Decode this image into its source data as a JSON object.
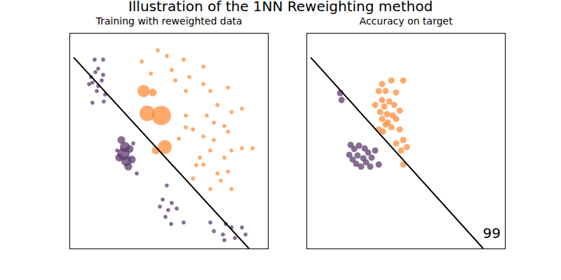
{
  "title": "Illustration of the 1NN Reweighting method",
  "chart_data": [
    {
      "type": "scatter",
      "title": "Training with reweighted data",
      "xlim": [
        0,
        10
      ],
      "ylim": [
        0,
        10
      ],
      "tick_labels": false,
      "series": [
        {
          "color": "#5e3c6e",
          "x": [
            1.24,
            1.67,
            1.42,
            1.28,
            1.67,
            0.96,
            1.13,
            1.42,
            1.35,
            1.77,
            1.7,
            1.13,
            1.06,
            1.6,
            2.59,
            2.77,
            2.7,
            3.01,
            2.48,
            2.84,
            3.12,
            2.94,
            3.37,
            2.38,
            3.19,
            4.89,
            4.68,
            5.14,
            4.54,
            4.96,
            5.39,
            5.74,
            5.11,
            4.82,
            7.09,
            7.87,
            8.16,
            8.69,
            7.73,
            8.33,
            7.27,
            8.87,
            7.8
          ],
          "y": [
            8.79,
            8.79,
            8.37,
            8.21,
            8.08,
            7.65,
            7.72,
            7.56,
            7.33,
            7.17,
            6.84,
            6.78,
            7.98,
            7.82,
            5.05,
            4.72,
            4.4,
            4.63,
            4.23,
            4.07,
            4.14,
            3.81,
            3.49,
            4.56,
            4.89,
            2.93,
            2.28,
            2.12,
            1.95,
            1.79,
            1.86,
            1.21,
            1.14,
            1.47,
            1.21,
            1.14,
            0.98,
            0.98,
            0.65,
            0.49,
            0.81,
            0.65,
            0.39
          ],
          "size": [
            1,
            1,
            1,
            1,
            1,
            1,
            1,
            1,
            1,
            1,
            1,
            1,
            1,
            1,
            2,
            3,
            4,
            2,
            2,
            3,
            2,
            2,
            1,
            1,
            1,
            1,
            1,
            1,
            1,
            1,
            1,
            1,
            1,
            1,
            1,
            1,
            1,
            1,
            1,
            1,
            1,
            1,
            1
          ]
        },
        {
          "color": "#fd8d3c",
          "x": [
            4.43,
            4.89,
            3.62,
            5.74,
            6.74,
            5.14,
            4.08,
            6.03,
            6.74,
            5.32,
            7.09,
            7.98,
            5.85,
            7.45,
            8.69,
            8.16,
            5.85,
            6.91,
            7.27,
            7.8,
            5.85,
            6.21,
            7.98,
            6.74,
            5.5,
            7.27,
            8.69,
            9.22,
            8.16,
            7.09,
            6.56,
            7.8,
            6.74,
            6.38,
            7.98,
            7.45,
            7.09,
            8.16,
            7.62,
            6.21,
            3.72,
            3.9,
            4.61,
            4.79,
            4.18,
            4.33
          ],
          "y": [
            9.22,
            8.96,
            8.7,
            8.79,
            8.47,
            8.31,
            8.14,
            7.98,
            7.65,
            7.82,
            7.33,
            7.49,
            7.33,
            6.68,
            6.51,
            6.35,
            6.19,
            6.19,
            5.86,
            5.7,
            5.64,
            5.54,
            5.44,
            5.21,
            5.11,
            5.05,
            4.66,
            4.66,
            4.56,
            4.56,
            4.23,
            4.23,
            3.91,
            3.88,
            3.58,
            3.49,
            2.77,
            2.77,
            3.16,
            3.26,
            7.33,
            6.29,
            6.19,
            4.72,
            7.26,
            4.56
          ],
          "size": [
            1,
            1,
            1,
            1,
            1,
            1,
            1,
            1,
            1,
            1,
            1,
            1,
            1,
            1,
            1,
            1,
            1,
            1,
            1,
            1,
            1,
            1,
            1,
            1,
            1,
            1,
            1,
            1,
            1,
            1,
            1,
            1,
            1,
            1,
            1,
            1,
            1,
            1,
            1,
            1,
            4,
            6,
            9,
            5,
            2,
            2
          ]
        },
        {
          "type": "line",
          "color": "#000000",
          "x": [
            0.18,
            9.04
          ],
          "y": [
            8.89,
            0
          ]
        }
      ]
    },
    {
      "type": "scatter",
      "title": "Accuracy on target",
      "xlim": [
        0,
        10
      ],
      "ylim": [
        0,
        10
      ],
      "tick_labels": false,
      "annotations": [
        {
          "text": "99"
        }
      ],
      "series": [
        {
          "color": "#5e3c6e",
          "x": [
            1.67,
            1.74,
            2.2,
            2.38,
            2.62,
            2.91,
            3.09,
            2.55,
            2.84,
            3.26,
            2.3,
            2.98,
            2.73,
            3.19,
            3.62,
            2.48,
            2.13,
            3.44
          ],
          "y": [
            7.23,
            6.91,
            4.82,
            4.63,
            4.79,
            4.66,
            4.46,
            4.33,
            4.2,
            4.23,
            4.14,
            4.01,
            3.81,
            3.81,
            3.91,
            3.94,
            4.36,
            4.56
          ]
        },
        {
          "color": "#fd8d3c",
          "x": [
            3.79,
            4.26,
            4.86,
            3.62,
            3.97,
            4.5,
            3.79,
            4.15,
            3.44,
            3.9,
            4.4,
            4.68,
            3.69,
            4.04,
            4.33,
            3.79,
            4.5,
            3.97,
            4.26,
            3.62,
            4.68,
            4.86,
            4.5,
            5.04,
            4.75,
            4.86,
            4.08,
            3.83
          ],
          "y": [
            7.65,
            7.82,
            7.82,
            7.33,
            7.33,
            7.26,
            6.91,
            6.84,
            6.68,
            6.61,
            6.68,
            6.42,
            6.35,
            6.25,
            6.19,
            6.03,
            6.03,
            5.77,
            5.64,
            5.54,
            5.54,
            5.05,
            4.89,
            4.72,
            4.56,
            3.91,
            5.86,
            5.44
          ]
        },
        {
          "type": "line",
          "color": "#000000",
          "x": [
            0.18,
            8.9
          ],
          "y": [
            8.89,
            0
          ]
        }
      ]
    }
  ]
}
